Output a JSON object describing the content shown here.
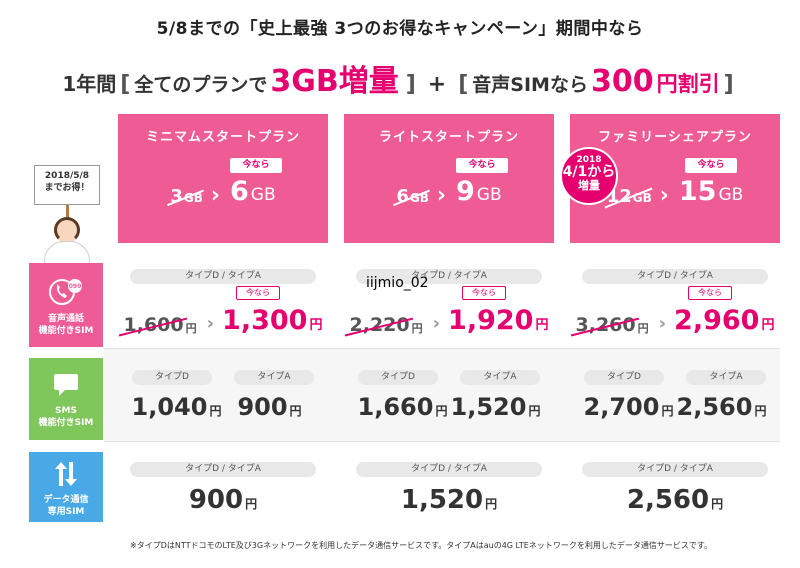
{
  "headline": "5/8までの「史上最強 3つのお得なキャンペーン」期間中なら",
  "promo": {
    "part1": "1年間",
    "bracket_open": "[",
    "part2": "全てのプランで",
    "big1": "3GB増量",
    "bracket_close": "]",
    "plus": "+",
    "part3": "音声SIMなら",
    "big2": "300",
    "part4": "円割引"
  },
  "mascot": {
    "sign_line1": "2018/5/8",
    "sign_line2": "までお得！"
  },
  "badge": {
    "year": "2018",
    "date": "4/1から",
    "inc": "増量"
  },
  "plans": [
    {
      "name": "ミニマムスタートプラン",
      "old_gb": "3",
      "new_gb": "6",
      "gb_unit": "GB",
      "now_label": "今なら"
    },
    {
      "name": "ライトスタートプラン",
      "old_gb": "6",
      "new_gb": "9",
      "gb_unit": "GB",
      "now_label": "今なら"
    },
    {
      "name": "ファミリーシェアプラン",
      "old_gb": "12",
      "new_gb": "15",
      "gb_unit": "GB",
      "now_label": "今なら"
    }
  ],
  "rows": {
    "voice": {
      "label_line1": "音声通話",
      "label_line2": "機能付きSIM",
      "icon": "phone-icon",
      "icon_badge": "090"
    },
    "sms": {
      "label_line1": "SMS",
      "label_line2": "機能付きSIM",
      "icon": "chat-icon"
    },
    "data": {
      "label_line1": "データ通信",
      "label_line2": "専用SIM",
      "icon": "updown-arrows-icon"
    }
  },
  "voice_prices": [
    {
      "type_label": "タイプD / タイプA",
      "old": "1,600",
      "new": "1,300",
      "now_label": "今なら",
      "yen": "円"
    },
    {
      "type_label": "タイプD / タイプA",
      "old": "2,220",
      "new": "1,920",
      "now_label": "今なら",
      "yen": "円"
    },
    {
      "type_label": "タイプD / タイプA",
      "old": "3,260",
      "new": "2,960",
      "now_label": "今なら",
      "yen": "円"
    }
  ],
  "sms_prices": [
    {
      "d_label": "タイプD",
      "a_label": "タイプA",
      "d_price": "1,040",
      "a_price": "900",
      "yen": "円"
    },
    {
      "d_label": "タイプD",
      "a_label": "タイプA",
      "d_price": "1,660",
      "a_price": "1,520",
      "yen": "円"
    },
    {
      "d_label": "タイプD",
      "a_label": "タイプA",
      "d_price": "2,700",
      "a_price": "2,560",
      "yen": "円"
    }
  ],
  "data_prices": [
    {
      "type_label": "タイプD / タイプA",
      "price": "900",
      "yen": "円"
    },
    {
      "type_label": "タイプD / タイプA",
      "price": "1,520",
      "yen": "円"
    },
    {
      "type_label": "タイプD / タイプA",
      "price": "2,560",
      "yen": "円"
    }
  ],
  "footnote": "※タイプDはNTTドコモのLTE及び3Gネットワークを利用したデータ通信サービスです。タイプAはauの4G LTEネットワークを利用したデータ通信サービスです。",
  "watermark": "iijmio_02",
  "colors": {
    "pink": "#ee5b95",
    "magenta": "#e6006f",
    "green": "#7fc75a",
    "blue": "#48a9e6"
  }
}
